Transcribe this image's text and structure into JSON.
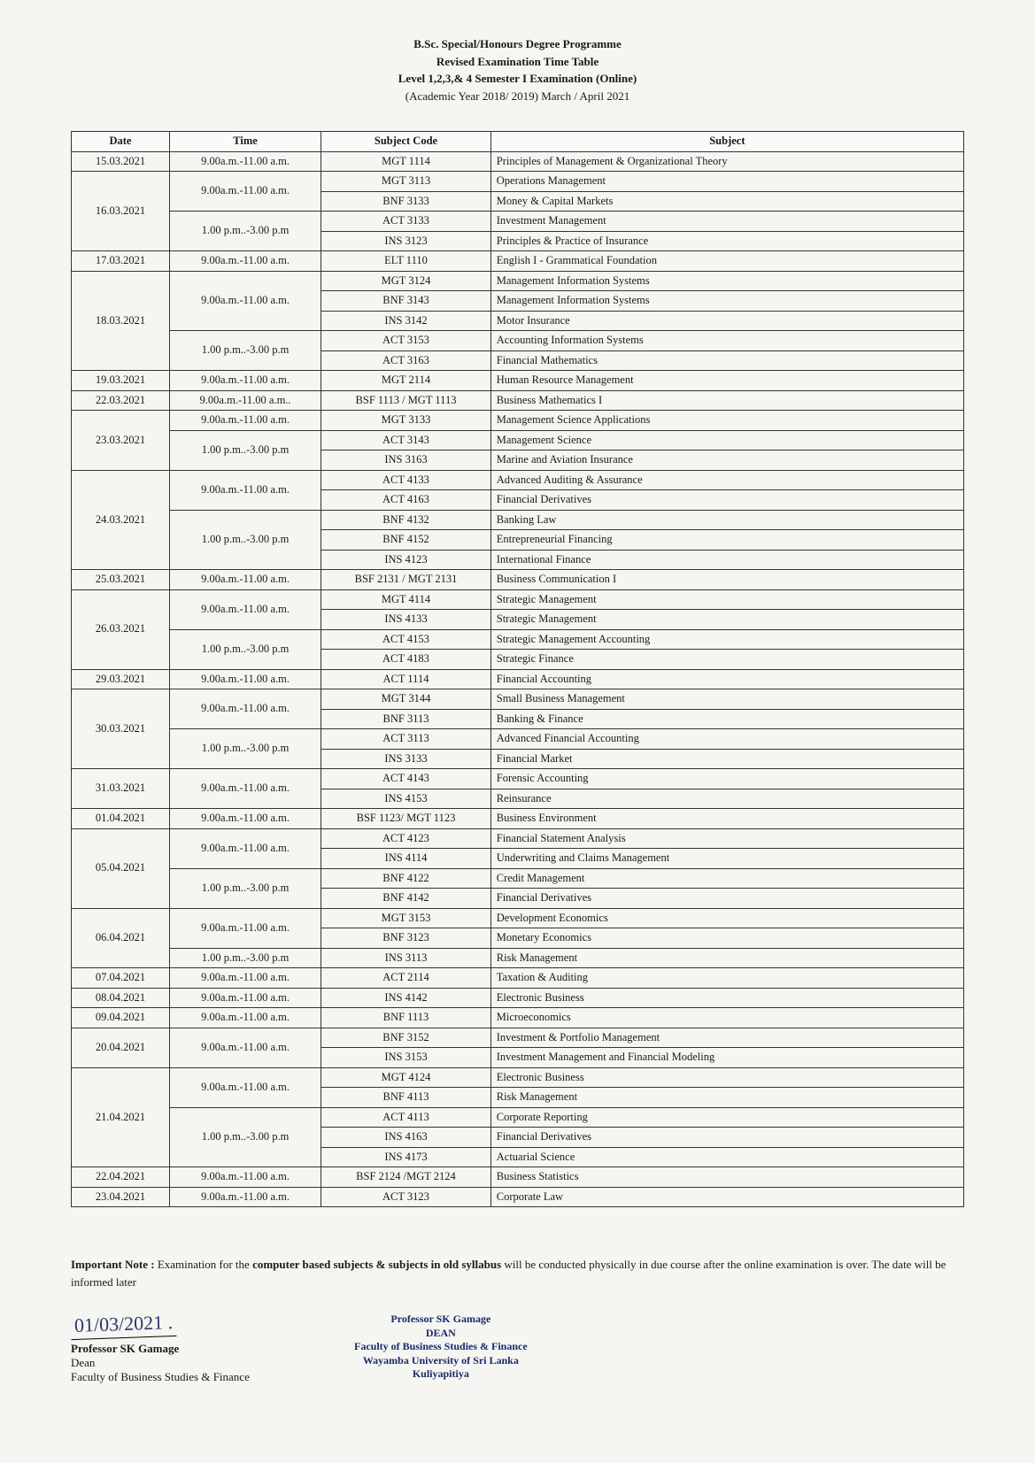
{
  "header": {
    "line1": "B.Sc. Special/Honours Degree Programme",
    "line2": "Revised Examination Time Table",
    "line3": "Level 1,2,3,& 4 Semester I Examination (Online)",
    "line4": "(Academic Year 2018/ 2019) March / April 2021"
  },
  "columns": [
    "Date",
    "Time",
    "Subject Code",
    "Subject"
  ],
  "rows": [
    {
      "date": "15.03.2021",
      "time": "9.00a.m.-11.00 a.m.",
      "code": "MGT 1114",
      "subject": "Principles of Management & Organizational Theory"
    },
    {
      "date": "16.03.2021",
      "date_rowspan": 4,
      "time": "9.00a.m.-11.00 a.m.",
      "time_rowspan": 2,
      "code": "MGT 3113",
      "subject": "Operations Management"
    },
    {
      "code": "BNF 3133",
      "subject": "Money & Capital Markets"
    },
    {
      "time": "1.00 p.m..-3.00 p.m",
      "time_rowspan": 2,
      "code": "ACT 3133",
      "subject": "Investment Management"
    },
    {
      "code": "INS 3123",
      "subject": "Principles & Practice of Insurance"
    },
    {
      "date": "17.03.2021",
      "time": "9.00a.m.-11.00 a.m.",
      "code": "ELT 1110",
      "subject": "English I - Grammatical Foundation"
    },
    {
      "date": "18.03.2021",
      "date_rowspan": 5,
      "time": "9.00a.m.-11.00 a.m.",
      "time_rowspan": 3,
      "code": "MGT 3124",
      "subject": "Management Information Systems"
    },
    {
      "code": "BNF 3143",
      "subject": "Management Information Systems"
    },
    {
      "code": "INS  3142",
      "subject": "Motor Insurance"
    },
    {
      "time": "1.00 p.m..-3.00 p.m",
      "time_rowspan": 2,
      "code": "ACT 3153",
      "subject": "Accounting Information Systems"
    },
    {
      "code": "ACT 3163",
      "subject": "Financial Mathematics"
    },
    {
      "date": "19.03.2021",
      "time": "9.00a.m.-11.00 a.m.",
      "code": "MGT 2114",
      "subject": "Human Resource Management"
    },
    {
      "date": "22.03.2021",
      "time": "9.00a.m.-11.00 a.m..",
      "code": "BSF 1113 / MGT 1113",
      "subject": "Business Mathematics I"
    },
    {
      "date": "23.03.2021",
      "date_rowspan": 3,
      "time": "9.00a.m.-11.00 a.m.",
      "code": "MGT 3133",
      "subject": "Management Science Applications"
    },
    {
      "time": "1.00 p.m..-3.00 p.m",
      "time_rowspan": 2,
      "code": "ACT 3143",
      "subject": "Management Science"
    },
    {
      "code": "INS 3163",
      "subject": "Marine and Aviation Insurance"
    },
    {
      "date": "24.03.2021",
      "date_rowspan": 5,
      "time": "9.00a.m.-11.00 a.m.",
      "time_rowspan": 2,
      "code": "ACT 4133",
      "subject": "Advanced Auditing & Assurance"
    },
    {
      "code": "ACT 4163",
      "subject": "Financial Derivatives"
    },
    {
      "time": "1.00 p.m..-3.00 p.m",
      "time_rowspan": 3,
      "code": "BNF  4132",
      "subject": "Banking Law"
    },
    {
      "code": "BNF 4152",
      "subject": "Entrepreneurial Financing"
    },
    {
      "code": "INS 4123",
      "subject": "International Finance"
    },
    {
      "date": "25.03.2021",
      "time": "9.00a.m.-11.00 a.m.",
      "code": "BSF 2131 / MGT 2131",
      "subject": "Business Communication I"
    },
    {
      "date": "26.03.2021",
      "date_rowspan": 4,
      "time": "9.00a.m.-11.00 a.m.",
      "time_rowspan": 2,
      "code": "MGT  4114",
      "subject": "Strategic Management"
    },
    {
      "code": "INS 4133",
      "subject": "Strategic Management"
    },
    {
      "time": "1.00 p.m..-3.00 p.m",
      "time_rowspan": 2,
      "code": "ACT 4153",
      "subject": "Strategic Management Accounting"
    },
    {
      "code": "ACT 4183",
      "subject": "Strategic Finance"
    },
    {
      "date": "29.03.2021",
      "time": "9.00a.m.-11.00 a.m.",
      "code": "ACT 1114",
      "subject": "Financial Accounting"
    },
    {
      "date": "30.03.2021",
      "date_rowspan": 4,
      "time": "9.00a.m.-11.00 a.m.",
      "time_rowspan": 2,
      "code": "MGT 3144",
      "subject": "Small Business Management"
    },
    {
      "code": "BNF 3113",
      "subject": "Banking & Finance"
    },
    {
      "time": "1.00 p.m..-3.00 p.m",
      "time_rowspan": 2,
      "code": "ACT 3113",
      "subject": "Advanced Financial Accounting"
    },
    {
      "code": "INS 3133",
      "subject": "Financial Market"
    },
    {
      "date": "31.03.2021",
      "date_rowspan": 2,
      "time": "9.00a.m.-11.00 a.m.",
      "time_rowspan": 2,
      "code": "ACT 4143",
      "subject": "Forensic Accounting"
    },
    {
      "code": "INS 4153",
      "subject": "Reinsurance"
    },
    {
      "date": "01.04.2021",
      "time": "9.00a.m.-11.00 a.m.",
      "code": "BSF 1123/ MGT 1123",
      "subject": "Business Environment"
    },
    {
      "date": "05.04.2021",
      "date_rowspan": 4,
      "time": "9.00a.m.-11.00 a.m.",
      "time_rowspan": 2,
      "code": "ACT 4123",
      "subject": "Financial Statement Analysis"
    },
    {
      "code": "INS 4114",
      "subject": "Underwriting and Claims Management"
    },
    {
      "time": "1.00 p.m..-3.00 p.m",
      "time_rowspan": 2,
      "code": "BNF  4122",
      "subject": "Credit Management"
    },
    {
      "code": "BNF 4142",
      "subject": "Financial Derivatives"
    },
    {
      "date": "06.04.2021",
      "date_rowspan": 3,
      "time": "9.00a.m.-11.00 a.m.",
      "time_rowspan": 2,
      "code": "MGT 3153",
      "subject": "Development Economics"
    },
    {
      "code": "BNF 3123",
      "subject": "Monetary Economics"
    },
    {
      "time": "1.00 p.m..-3.00 p.m",
      "code": "INS 3113",
      "subject": "Risk Management"
    },
    {
      "date": "07.04.2021",
      "time": "9.00a.m.-11.00 a.m.",
      "code": "ACT 2114",
      "subject": "Taxation & Auditing"
    },
    {
      "date": "08.04.2021",
      "time": "9.00a.m.-11.00 a.m.",
      "code": "INS 4142",
      "subject": "Electronic Business"
    },
    {
      "date": "09.04.2021",
      "time": "9.00a.m.-11.00 a.m.",
      "code": "BNF 1113",
      "subject": "Microeconomics"
    },
    {
      "date": "20.04.2021",
      "date_rowspan": 2,
      "time": "9.00a.m.-11.00 a.m.",
      "time_rowspan": 2,
      "code": "BNF 3152",
      "subject": "Investment & Portfolio Management"
    },
    {
      "code": "INS 3153",
      "subject": "Investment Management and Financial Modeling"
    },
    {
      "date": "21.04.2021",
      "date_rowspan": 5,
      "time": "9.00a.m.-11.00 a.m.",
      "time_rowspan": 2,
      "code": "MGT  4124",
      "subject": "Electronic Business"
    },
    {
      "code": "BNF 4113",
      "subject": "Risk Management"
    },
    {
      "time": "1.00 p.m..-3.00 p.m",
      "time_rowspan": 3,
      "code": "ACT 4113",
      "subject": "Corporate Reporting"
    },
    {
      "code": "INS 4163",
      "subject": "Financial Derivatives"
    },
    {
      "code": "INS 4173",
      "subject": "Actuarial Science"
    },
    {
      "date": "22.04.2021",
      "time": "9.00a.m.-11.00 a.m.",
      "code": "BSF 2124 /MGT 2124",
      "subject": "Business Statistics"
    },
    {
      "date": "23.04.2021",
      "time": "9.00a.m.-11.00 a.m.",
      "code": "ACT 3123",
      "subject": "Corporate Law"
    }
  ],
  "note": {
    "lead": "Important Note :",
    "body_a": "  Examination for the ",
    "bold": "computer based subjects & subjects in old syllabus",
    "body_b": "  will be conducted physically in due course after the online examination is over. The date will be informed later"
  },
  "signature": {
    "handwritten": "01/03/2021 .",
    "name": "Professor SK Gamage",
    "title": "Dean",
    "dept": "Faculty of Business Studies & Finance"
  },
  "stamp": {
    "l1": "Professor SK Gamage",
    "l2": "DEAN",
    "l3": "Faculty of Business Studies & Finance",
    "l4": "Wayamba University of Sri Lanka",
    "l5": "Kuliyapitiya"
  }
}
